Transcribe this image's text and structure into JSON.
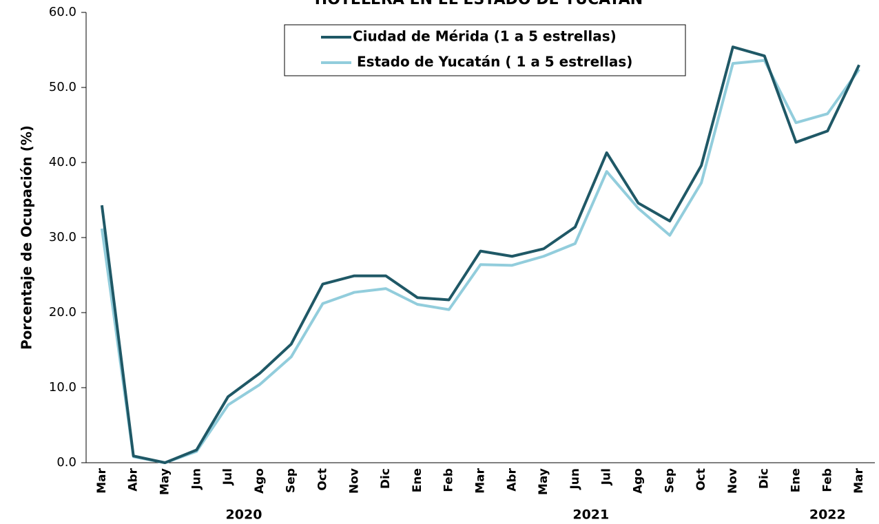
{
  "chart_data": {
    "type": "line",
    "title": "HOTELERA EN EL ESTADO DE YUCATÁN",
    "y_label": "Porcentaje de Ocupación (%)",
    "categories": [
      "Mar",
      "Abr",
      "May",
      "Jun",
      "Jul",
      "Ago",
      "Sep",
      "Oct",
      "Nov",
      "Dic",
      "Ene",
      "Feb",
      "Mar",
      "Abr",
      "May",
      "Jun",
      "Jul",
      "Ago",
      "Sep",
      "Oct",
      "Nov",
      "Dic",
      "Ene",
      "Feb",
      "Mar"
    ],
    "years": [
      "2020",
      "2021",
      "2022"
    ],
    "series": [
      {
        "name": "Ciudad de Mérida (1 a 5 estrellas)",
        "color": "#1f5866",
        "values": [
          34.3,
          0.9,
          0.0,
          1.7,
          8.8,
          11.9,
          15.8,
          23.8,
          24.9,
          24.9,
          22.0,
          21.7,
          28.2,
          27.5,
          28.5,
          31.4,
          41.3,
          34.6,
          32.2,
          39.6,
          55.4,
          54.2,
          42.7,
          44.2,
          53.0
        ]
      },
      {
        "name": "Estado de Yucatán ( 1 a 5 estrellas)",
        "color": "#92cddc",
        "values": [
          31.2,
          0.8,
          0.0,
          1.5,
          7.7,
          10.4,
          14.1,
          21.2,
          22.7,
          23.2,
          21.1,
          20.4,
          26.4,
          26.3,
          27.5,
          29.2,
          38.8,
          33.9,
          30.3,
          37.3,
          53.2,
          53.6,
          45.3,
          46.5,
          52.4
        ]
      }
    ],
    "ylim": [
      0,
      60
    ],
    "yticks": [
      {
        "value": 0,
        "label": "0.0"
      },
      {
        "value": 10,
        "label": "10.0"
      },
      {
        "value": 20,
        "label": "20.0"
      },
      {
        "value": 30,
        "label": "30.0"
      },
      {
        "value": 40,
        "label": "40.0"
      },
      {
        "value": 50,
        "label": "50.0"
      },
      {
        "value": 60,
        "label": "60.0"
      }
    ],
    "grid": false
  }
}
